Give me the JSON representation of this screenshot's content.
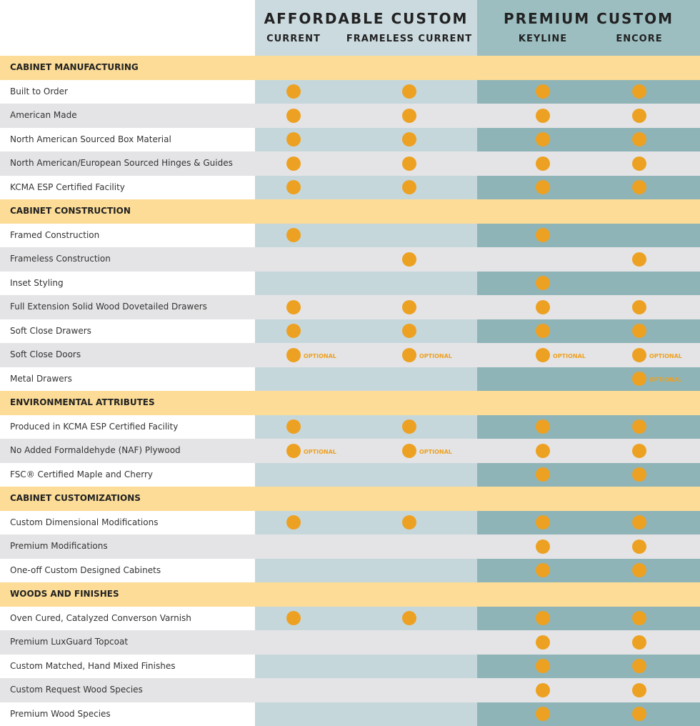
{
  "groups": [
    {
      "title": "AFFORDABLE CUSTOM",
      "columns": [
        "CURRENT",
        "FRAMELESS CURRENT"
      ]
    },
    {
      "title": "PREMIUM CUSTOM",
      "columns": [
        "KEYLINE",
        "ENCORE"
      ]
    }
  ],
  "sections": [
    {
      "title": "CABINET MANUFACTURING",
      "rows": [
        {
          "label": "Built to Order",
          "cells": [
            true,
            true,
            true,
            true
          ]
        },
        {
          "label": "American Made",
          "cells": [
            true,
            true,
            true,
            true
          ]
        },
        {
          "label": "North American Sourced Box Material",
          "cells": [
            true,
            true,
            true,
            true
          ]
        },
        {
          "label": "North American/European Sourced Hinges & Guides",
          "cells": [
            true,
            true,
            true,
            true
          ]
        },
        {
          "label": "KCMA ESP Certified Facility",
          "cells": [
            true,
            true,
            true,
            true
          ]
        }
      ]
    },
    {
      "title": "CABINET CONSTRUCTION",
      "rows": [
        {
          "label": "Framed Construction",
          "cells": [
            true,
            null,
            true,
            null
          ]
        },
        {
          "label": "Frameless Construction",
          "cells": [
            null,
            true,
            null,
            true
          ]
        },
        {
          "label": "Inset Styling",
          "cells": [
            null,
            null,
            true,
            null
          ]
        },
        {
          "label": "Full Extension Solid Wood Dovetailed Drawers",
          "cells": [
            true,
            true,
            true,
            true
          ]
        },
        {
          "label": "Soft Close Drawers",
          "cells": [
            true,
            true,
            true,
            true
          ]
        },
        {
          "label": "Soft Close Doors",
          "cells": [
            "OPTIONAL",
            "OPTIONAL",
            "OPTIONAL",
            "OPTIONAL"
          ]
        },
        {
          "label": "Metal Drawers",
          "cells": [
            null,
            null,
            null,
            "OPTIONAL"
          ]
        }
      ]
    },
    {
      "title": "ENVIRONMENTAL ATTRIBUTES",
      "rows": [
        {
          "label": "Produced in KCMA ESP Certified Facility",
          "cells": [
            true,
            true,
            true,
            true
          ]
        },
        {
          "label": "No Added Formaldehyde (NAF) Plywood",
          "cells": [
            "OPTIONAL",
            "OPTIONAL",
            true,
            true
          ]
        },
        {
          "label": "FSC® Certified Maple and Cherry",
          "cells": [
            null,
            null,
            true,
            true
          ]
        }
      ]
    },
    {
      "title": "CABINET CUSTOMIZATIONS",
      "rows": [
        {
          "label": "Custom Dimensional Modifications",
          "cells": [
            true,
            true,
            true,
            true
          ]
        },
        {
          "label": "Premium Modifications",
          "cells": [
            null,
            null,
            true,
            true
          ]
        },
        {
          "label": "One-off Custom Designed Cabinets",
          "cells": [
            null,
            null,
            true,
            true
          ]
        }
      ]
    },
    {
      "title": "WOODS AND FINISHES",
      "rows": [
        {
          "label": "Oven Cured, Catalyzed Converson Varnish",
          "cells": [
            true,
            true,
            true,
            true
          ]
        },
        {
          "label": "Premium LuxGuard Topcoat",
          "cells": [
            null,
            null,
            true,
            true
          ]
        },
        {
          "label": "Custom Matched, Hand Mixed Finishes",
          "cells": [
            null,
            null,
            true,
            true
          ]
        },
        {
          "label": "Custom Request Wood Species",
          "cells": [
            null,
            null,
            true,
            true
          ]
        },
        {
          "label": "Premium Wood Species",
          "cells": [
            null,
            null,
            true,
            true
          ]
        }
      ]
    }
  ]
}
